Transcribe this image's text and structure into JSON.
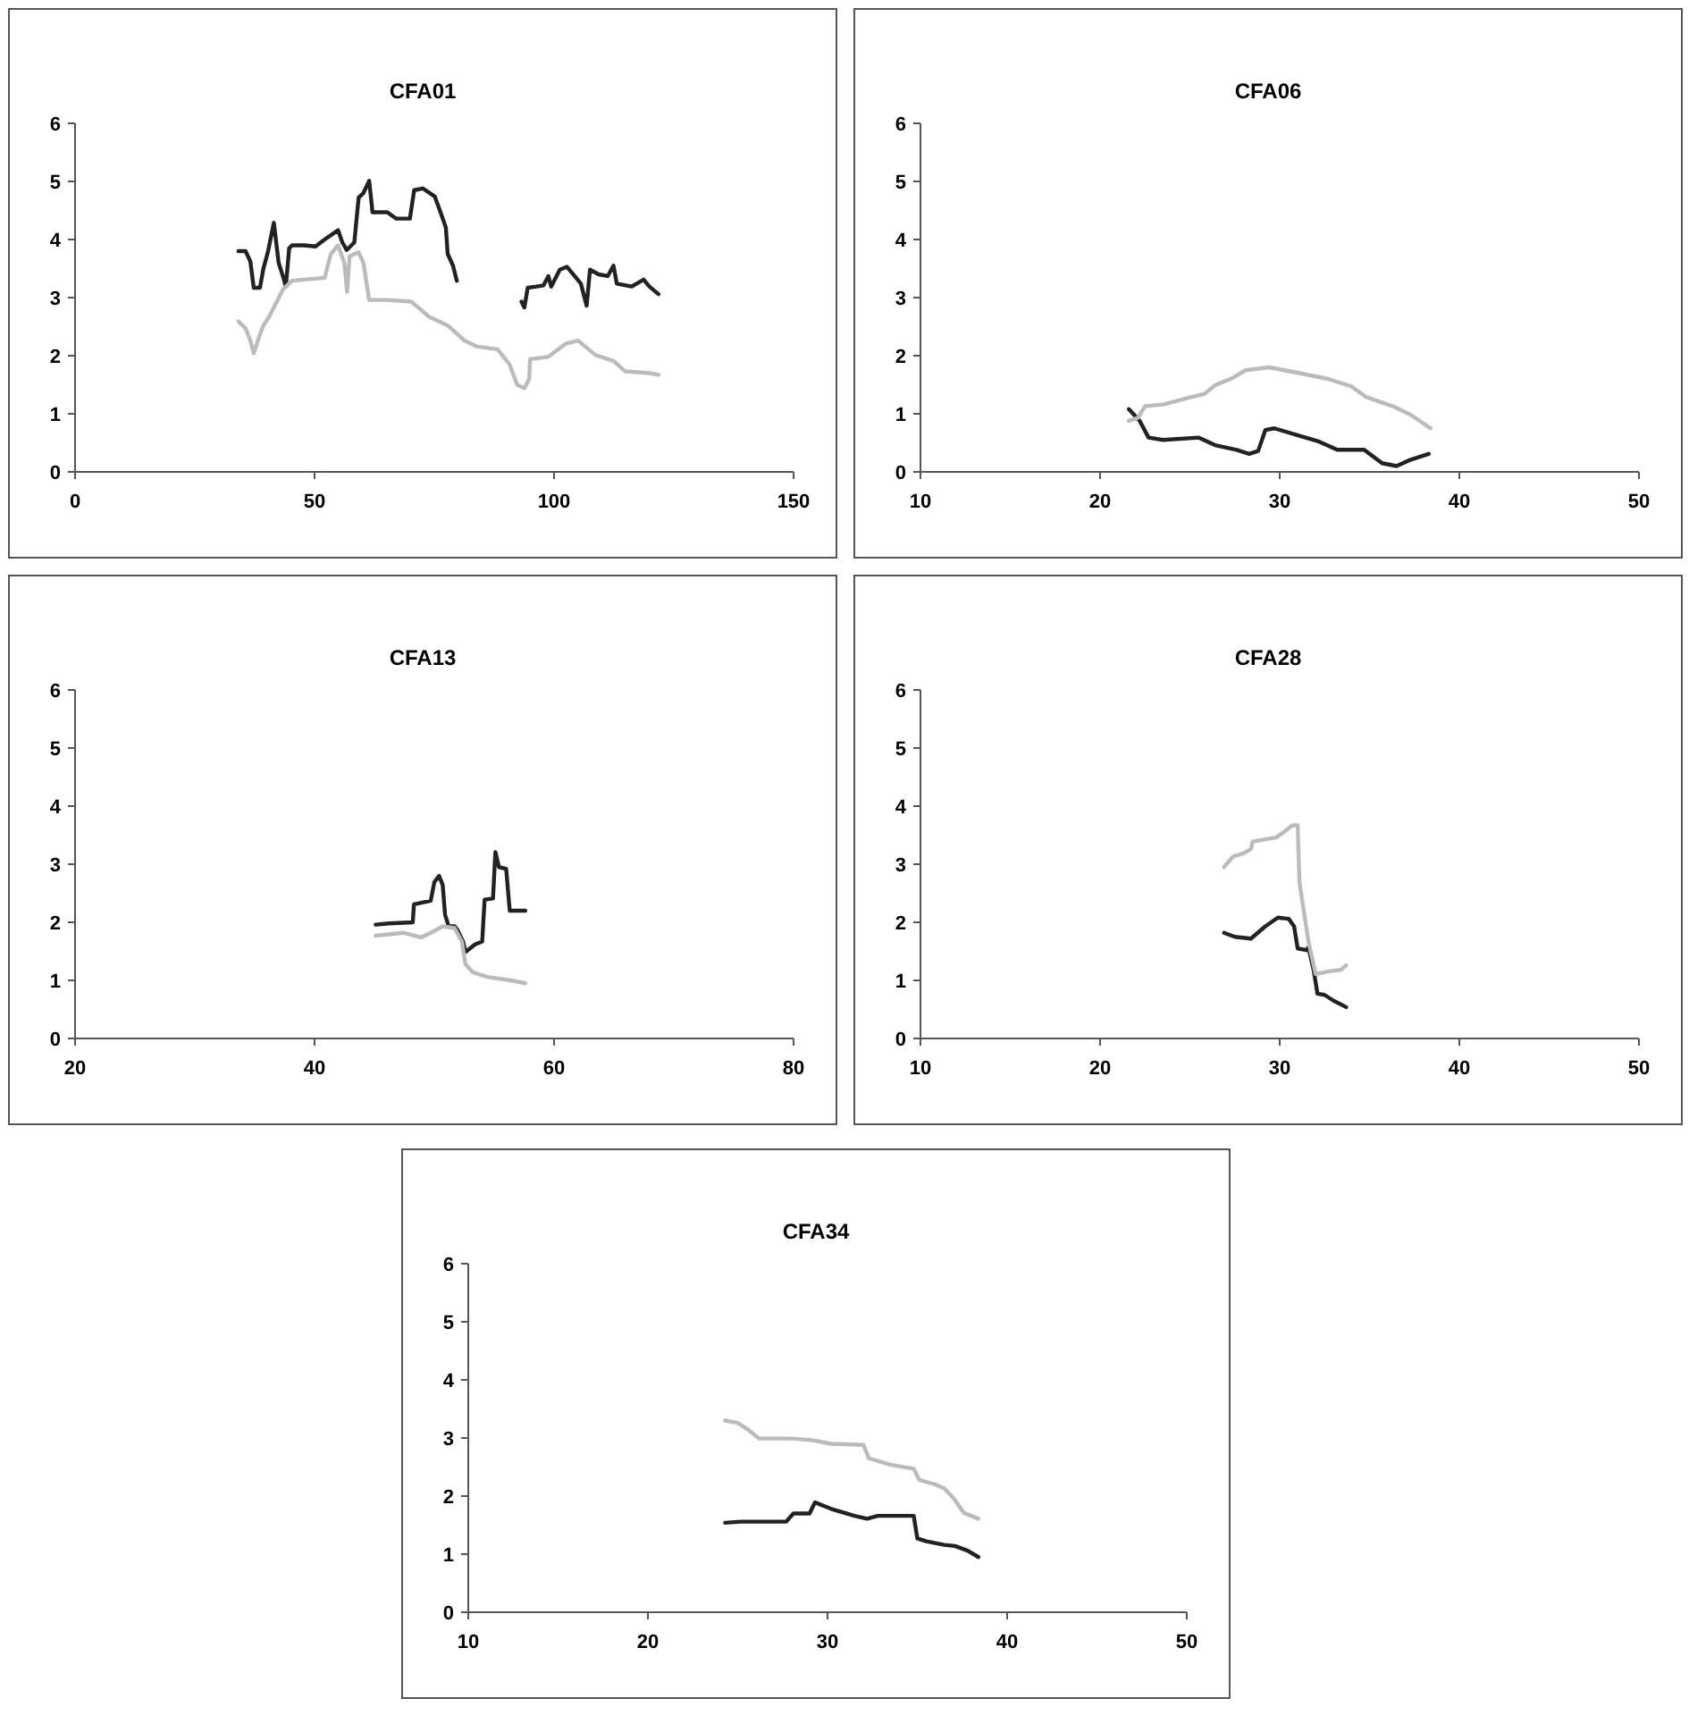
{
  "chart_data": [
    {
      "type": "line",
      "title": "CFA01",
      "xlim": [
        0,
        150
      ],
      "xticks": [
        0,
        50,
        100,
        150
      ],
      "ylim": [
        0,
        6
      ],
      "yticks": [
        0,
        1,
        2,
        3,
        4,
        5,
        6
      ],
      "grid": false,
      "series": [
        {
          "color": "#222222",
          "x": [
            34.1,
            35.6,
            36.6,
            37.3,
            38.6,
            39.3,
            40.3,
            41.5,
            42.5,
            43.5,
            44.0,
            44.7,
            45.3,
            47.8,
            50.2,
            52.1,
            54.9,
            55.8,
            56.7,
            58.3,
            59.2,
            60.2,
            61.4,
            62.1,
            65.2,
            67.0,
            69.9,
            70.8,
            72.6,
            75.1,
            76.3,
            77.4,
            77.8,
            78.9,
            79.7,
            86,
            93.2,
            93.8,
            94.5,
            96.3,
            97.8,
            98.8,
            99.4,
            101.2,
            102.7,
            104.3,
            105.6,
            106.8,
            107.5,
            109.3,
            111.2,
            112.4,
            113.1,
            116.2,
            118.7,
            119.9,
            121.8
          ],
          "values": [
            3.8,
            3.8,
            3.62,
            3.17,
            3.17,
            3.49,
            3.8,
            4.29,
            3.6,
            3.34,
            3.19,
            3.85,
            3.9,
            3.9,
            3.88,
            4.0,
            4.16,
            3.95,
            3.82,
            3.95,
            4.72,
            4.8,
            5.01,
            4.47,
            4.47,
            4.36,
            4.36,
            4.85,
            4.88,
            4.74,
            4.47,
            4.21,
            3.75,
            3.55,
            3.29,
            null,
            2.93,
            2.83,
            3.17,
            3.19,
            3.21,
            3.37,
            3.19,
            3.48,
            3.53,
            3.37,
            3.24,
            2.86,
            3.48,
            3.4,
            3.37,
            3.55,
            3.24,
            3.19,
            3.31,
            3.19,
            3.06
          ]
        },
        {
          "color": "#bbbbbb",
          "x": [
            34.1,
            35.6,
            36.6,
            37.3,
            38.4,
            39.3,
            40.5,
            41.8,
            43.4,
            45.3,
            47.8,
            52.1,
            53.4,
            54.9,
            56.2,
            56.8,
            57.3,
            59.2,
            60.2,
            61.4,
            65.2,
            70.2,
            73.9,
            77.8,
            81.3,
            83.8,
            88.2,
            90.7,
            92.3,
            93.8,
            94.8,
            95.0,
            98.8,
            102.5,
            105.0,
            108.7,
            112.4,
            114.9,
            119.9,
            121.8
          ],
          "values": [
            2.59,
            2.47,
            2.26,
            2.04,
            2.32,
            2.52,
            2.67,
            2.88,
            3.14,
            3.29,
            3.31,
            3.34,
            3.75,
            3.9,
            3.6,
            3.1,
            3.71,
            3.78,
            3.6,
            2.96,
            2.96,
            2.93,
            2.67,
            2.52,
            2.26,
            2.16,
            2.11,
            1.85,
            1.5,
            1.44,
            1.6,
            1.94,
            1.98,
            2.21,
            2.26,
            2.01,
            1.91,
            1.73,
            1.7,
            1.67
          ]
        }
      ]
    },
    {
      "type": "line",
      "title": "CFA06",
      "xlim": [
        10,
        50
      ],
      "xticks": [
        10,
        20,
        30,
        40,
        50
      ],
      "ylim": [
        0,
        6
      ],
      "yticks": [
        0,
        1,
        2,
        3,
        4,
        5,
        6
      ],
      "grid": false,
      "series": [
        {
          "color": "#222222",
          "x": [
            21.6,
            22.2,
            22.7,
            23.5,
            25.5,
            26.4,
            27.6,
            28.3,
            28.8,
            29.2,
            29.7,
            31.1,
            32.2,
            33.2,
            34.7,
            35.7,
            36.5,
            37.3,
            38.3
          ],
          "values": [
            1.08,
            0.88,
            0.59,
            0.55,
            0.59,
            0.46,
            0.38,
            0.31,
            0.36,
            0.72,
            0.75,
            0.62,
            0.52,
            0.38,
            0.38,
            0.15,
            0.1,
            0.21,
            0.31
          ]
        },
        {
          "color": "#bbbbbb",
          "x": [
            21.6,
            22.1,
            22.5,
            23.5,
            24.5,
            25.1,
            25.8,
            26.4,
            27.4,
            28.1,
            29.4,
            31.1,
            32.7,
            34.0,
            34.8,
            36.3,
            37.3,
            38.4
          ],
          "values": [
            0.88,
            0.93,
            1.13,
            1.16,
            1.24,
            1.29,
            1.34,
            1.49,
            1.62,
            1.75,
            1.8,
            1.7,
            1.6,
            1.47,
            1.29,
            1.13,
            0.98,
            0.75
          ]
        }
      ]
    },
    {
      "type": "line",
      "title": "CFA13",
      "xlim": [
        20,
        80
      ],
      "xticks": [
        20,
        40,
        60,
        80
      ],
      "ylim": [
        0,
        6
      ],
      "yticks": [
        0,
        1,
        2,
        3,
        4,
        5,
        6
      ],
      "grid": false,
      "series": [
        {
          "color": "#222222",
          "x": [
            45.1,
            46.2,
            48.2,
            48.3,
            49.7,
            50.0,
            50.4,
            50.7,
            50.9,
            51.2,
            51.7,
            51.9,
            52.4,
            52.6,
            53.4,
            54.0,
            54.2,
            54.9,
            55.1,
            55.4,
            56.0,
            56.3,
            57.6
          ],
          "values": [
            1.96,
            1.98,
            2.0,
            2.31,
            2.37,
            2.69,
            2.8,
            2.64,
            2.13,
            1.93,
            1.93,
            1.88,
            1.67,
            1.49,
            1.62,
            1.67,
            2.39,
            2.41,
            3.21,
            2.95,
            2.92,
            2.2,
            2.2
          ]
        },
        {
          "color": "#bbbbbb",
          "x": [
            45.1,
            47.4,
            48.9,
            49.7,
            50.7,
            51.7,
            52.3,
            52.6,
            53.2,
            54.4,
            56.4,
            57.6
          ],
          "values": [
            1.77,
            1.82,
            1.74,
            1.82,
            1.93,
            1.9,
            1.67,
            1.28,
            1.14,
            1.06,
            1.0,
            0.95
          ]
        }
      ]
    },
    {
      "type": "line",
      "title": "CFA28",
      "xlim": [
        10,
        50
      ],
      "xticks": [
        10,
        20,
        30,
        40,
        50
      ],
      "ylim": [
        0,
        6
      ],
      "yticks": [
        0,
        1,
        2,
        3,
        4,
        5,
        6
      ],
      "grid": false,
      "series": [
        {
          "color": "#222222",
          "x": [
            26.9,
            27.5,
            28.4,
            29.2,
            29.9,
            30.5,
            30.8,
            31.0,
            31.5,
            31.6,
            31.9,
            32.1,
            32.5,
            33.0,
            33.7
          ],
          "values": [
            1.82,
            1.75,
            1.72,
            1.93,
            2.08,
            2.06,
            1.93,
            1.55,
            1.52,
            1.57,
            1.16,
            0.77,
            0.75,
            0.65,
            0.54
          ]
        },
        {
          "color": "#bbbbbb",
          "x": [
            26.9,
            27.4,
            28.0,
            28.4,
            28.5,
            29.2,
            29.8,
            30.3,
            30.7,
            31.0,
            31.1,
            31.3,
            31.6,
            32.0,
            32.8,
            33.4,
            33.7
          ],
          "values": [
            2.95,
            3.13,
            3.19,
            3.26,
            3.39,
            3.43,
            3.46,
            3.57,
            3.67,
            3.67,
            2.69,
            2.28,
            1.67,
            1.11,
            1.16,
            1.18,
            1.26
          ]
        }
      ]
    },
    {
      "type": "line",
      "title": "CFA34",
      "xlim": [
        10,
        50
      ],
      "xticks": [
        10,
        20,
        30,
        40,
        50
      ],
      "ylim": [
        0,
        6
      ],
      "yticks": [
        0,
        1,
        2,
        3,
        4,
        5,
        6
      ],
      "grid": false,
      "series": [
        {
          "color": "#222222",
          "x": [
            24.3,
            25.2,
            27.7,
            28.1,
            29.0,
            29.3,
            30.2,
            31.5,
            32.2,
            32.8,
            34.8,
            35.0,
            35.5,
            36.5,
            37.1,
            37.8,
            38.4
          ],
          "values": [
            1.54,
            1.56,
            1.56,
            1.7,
            1.7,
            1.89,
            1.78,
            1.66,
            1.61,
            1.66,
            1.66,
            1.27,
            1.22,
            1.16,
            1.14,
            1.06,
            0.95
          ]
        },
        {
          "color": "#bbbbbb",
          "x": [
            24.3,
            25.0,
            25.5,
            26.2,
            28.0,
            29.2,
            30.2,
            32.0,
            32.3,
            33.5,
            34.8,
            35.1,
            36.0,
            36.5,
            37.0,
            37.6,
            38.4
          ],
          "values": [
            3.3,
            3.26,
            3.16,
            2.99,
            2.99,
            2.96,
            2.9,
            2.88,
            2.65,
            2.54,
            2.47,
            2.28,
            2.2,
            2.13,
            1.97,
            1.71,
            1.61
          ]
        }
      ]
    }
  ]
}
